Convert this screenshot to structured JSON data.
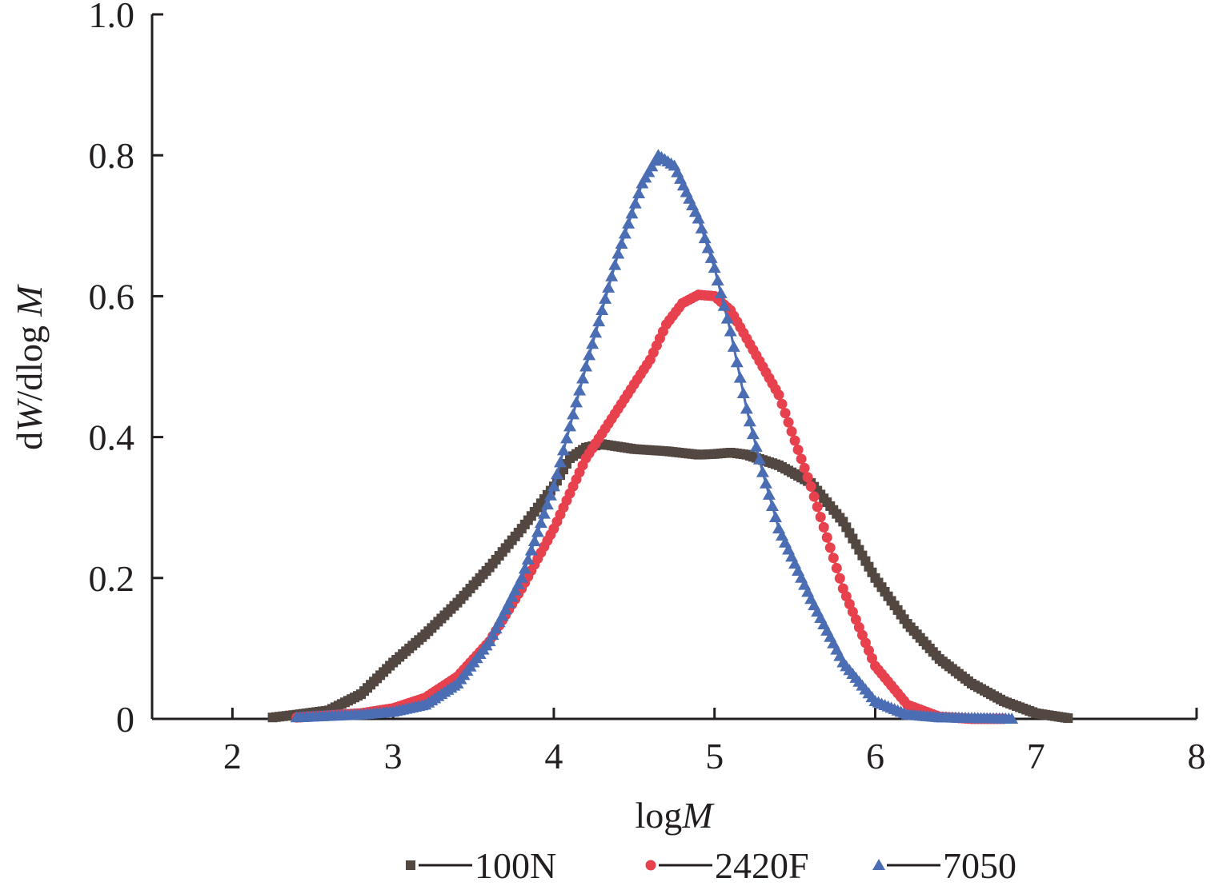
{
  "chart_data": {
    "type": "line",
    "xlabel": "logM",
    "ylabel": "dW/dlog M",
    "xlim": [
      1.5,
      8
    ],
    "ylim": [
      0,
      1.0
    ],
    "xticks": [
      "2",
      "3",
      "4",
      "5",
      "6",
      "7",
      "8"
    ],
    "yticks": [
      "0",
      "0.2",
      "0.4",
      "0.6",
      "0.8",
      "1.0"
    ],
    "grid": false,
    "legend_position": "bottom",
    "series": [
      {
        "name": "100N",
        "marker": "square",
        "color": "#534741",
        "points": [
          [
            2.25,
            0.002
          ],
          [
            2.4,
            0.006
          ],
          [
            2.6,
            0.012
          ],
          [
            2.8,
            0.035
          ],
          [
            3.0,
            0.08
          ],
          [
            3.2,
            0.12
          ],
          [
            3.4,
            0.165
          ],
          [
            3.6,
            0.215
          ],
          [
            3.8,
            0.27
          ],
          [
            4.0,
            0.33
          ],
          [
            4.1,
            0.37
          ],
          [
            4.2,
            0.385
          ],
          [
            4.3,
            0.39
          ],
          [
            4.5,
            0.383
          ],
          [
            4.7,
            0.38
          ],
          [
            4.9,
            0.375
          ],
          [
            5.0,
            0.376
          ],
          [
            5.1,
            0.378
          ],
          [
            5.2,
            0.375
          ],
          [
            5.4,
            0.36
          ],
          [
            5.6,
            0.335
          ],
          [
            5.8,
            0.28
          ],
          [
            6.0,
            0.2
          ],
          [
            6.2,
            0.135
          ],
          [
            6.4,
            0.085
          ],
          [
            6.6,
            0.05
          ],
          [
            6.8,
            0.025
          ],
          [
            7.0,
            0.008
          ],
          [
            7.2,
            0.001
          ]
        ]
      },
      {
        "name": "2420F",
        "marker": "circle",
        "color": "#e8414e",
        "points": [
          [
            2.4,
            0.002
          ],
          [
            2.6,
            0.005
          ],
          [
            2.8,
            0.008
          ],
          [
            3.0,
            0.015
          ],
          [
            3.2,
            0.03
          ],
          [
            3.4,
            0.06
          ],
          [
            3.6,
            0.11
          ],
          [
            3.8,
            0.185
          ],
          [
            4.0,
            0.27
          ],
          [
            4.2,
            0.37
          ],
          [
            4.4,
            0.44
          ],
          [
            4.6,
            0.51
          ],
          [
            4.7,
            0.56
          ],
          [
            4.8,
            0.59
          ],
          [
            4.9,
            0.602
          ],
          [
            5.0,
            0.6
          ],
          [
            5.1,
            0.58
          ],
          [
            5.2,
            0.54
          ],
          [
            5.4,
            0.46
          ],
          [
            5.6,
            0.33
          ],
          [
            5.8,
            0.185
          ],
          [
            6.0,
            0.075
          ],
          [
            6.2,
            0.02
          ],
          [
            6.4,
            0.003
          ],
          [
            6.6,
            0.0
          ],
          [
            6.8,
            0.0
          ]
        ]
      },
      {
        "name": "7050",
        "marker": "triangle",
        "color": "#4a6db4",
        "points": [
          [
            2.4,
            0.002
          ],
          [
            2.6,
            0.004
          ],
          [
            2.8,
            0.006
          ],
          [
            3.0,
            0.01
          ],
          [
            3.2,
            0.02
          ],
          [
            3.4,
            0.05
          ],
          [
            3.6,
            0.11
          ],
          [
            3.8,
            0.2
          ],
          [
            4.0,
            0.33
          ],
          [
            4.2,
            0.5
          ],
          [
            4.4,
            0.66
          ],
          [
            4.55,
            0.76
          ],
          [
            4.65,
            0.8
          ],
          [
            4.75,
            0.785
          ],
          [
            4.9,
            0.71
          ],
          [
            5.0,
            0.64
          ],
          [
            5.1,
            0.55
          ],
          [
            5.2,
            0.44
          ],
          [
            5.3,
            0.35
          ],
          [
            5.4,
            0.27
          ],
          [
            5.6,
            0.17
          ],
          [
            5.8,
            0.08
          ],
          [
            6.0,
            0.025
          ],
          [
            6.2,
            0.006
          ],
          [
            6.4,
            0.002
          ],
          [
            6.6,
            0.001
          ],
          [
            6.85,
            0.0
          ]
        ]
      }
    ]
  }
}
